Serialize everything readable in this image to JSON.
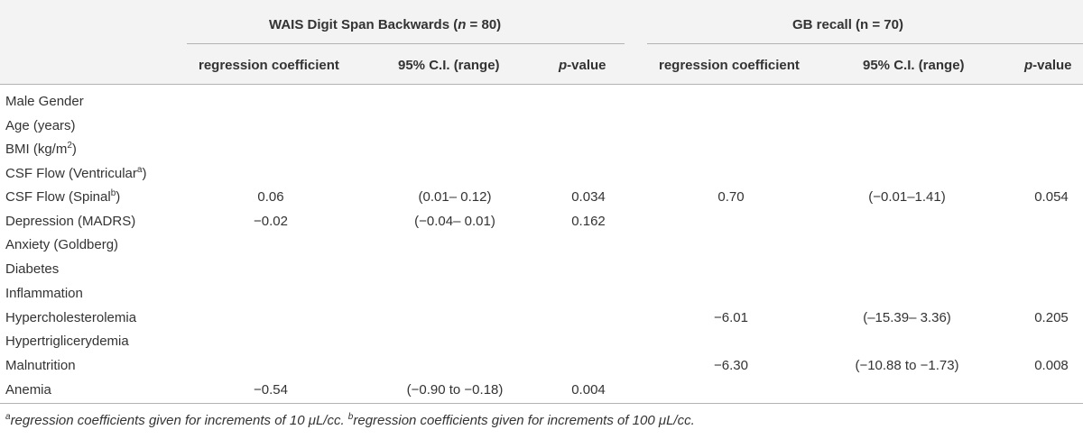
{
  "groups": {
    "left": {
      "title_pre": "WAIS Digit Span Backwards (",
      "n_sym": "n",
      "title_post": " = 80)"
    },
    "right": {
      "title": "GB recall (n = 70)"
    }
  },
  "columns": {
    "left_coef": "regression coefficient",
    "left_ci": "95% C.I. (range)",
    "left_p_italic": "p",
    "left_p_rest": "-value",
    "right_coef": "regression coefficient",
    "right_ci": "95% C.I. (range)",
    "right_p_italic": "p",
    "right_p_rest": "-value"
  },
  "rows": [
    {
      "label": "Male Gender",
      "wc": "",
      "wci": "",
      "wp": "",
      "gc": "",
      "gci": "",
      "gp": ""
    },
    {
      "label": "Age (years)",
      "wc": "",
      "wci": "",
      "wp": "",
      "gc": "",
      "gci": "",
      "gp": ""
    },
    {
      "label": "BMI (kg/m",
      "label_sup": "2",
      "label_tail": ")",
      "wc": "",
      "wci": "",
      "wp": "",
      "gc": "",
      "gci": "",
      "gp": ""
    },
    {
      "label": "CSF Flow (Ventricular",
      "label_sup": "a",
      "label_tail": ")",
      "wc": "",
      "wci": "",
      "wp": "",
      "gc": "",
      "gci": "",
      "gp": ""
    },
    {
      "label": "CSF Flow (Spinal",
      "label_sup": "b",
      "label_tail": ")",
      "wc": "0.06",
      "wci": "(0.01– 0.12)",
      "wp": "0.034",
      "gc": "0.70",
      "gci": "(−0.01–1.41)",
      "gp": "0.054"
    },
    {
      "label": "Depression (MADRS)",
      "wc": "−0.02",
      "wci": "(−0.04– 0.01)",
      "wp": "0.162",
      "gc": "",
      "gci": "",
      "gp": ""
    },
    {
      "label": "Anxiety (Goldberg)",
      "wc": "",
      "wci": "",
      "wp": "",
      "gc": "",
      "gci": "",
      "gp": ""
    },
    {
      "label": "Diabetes",
      "wc": "",
      "wci": "",
      "wp": "",
      "gc": "",
      "gci": "",
      "gp": ""
    },
    {
      "label": "Inflammation",
      "wc": "",
      "wci": "",
      "wp": "",
      "gc": "",
      "gci": "",
      "gp": ""
    },
    {
      "label": "Hypercholesterolemia",
      "wc": "",
      "wci": "",
      "wp": "",
      "gc": "−6.01",
      "gci": "(–15.39– 3.36)",
      "gp": "0.205"
    },
    {
      "label": "Hypertriglicerydemia",
      "wc": "",
      "wci": "",
      "wp": "",
      "gc": "",
      "gci": "",
      "gp": ""
    },
    {
      "label": "Malnutrition",
      "wc": "",
      "wci": "",
      "wp": "",
      "gc": "−6.30",
      "gci": "(−10.88 to −1.73)",
      "gp": "0.008"
    },
    {
      "label": "Anemia",
      "wc": "−0.54",
      "wci": "(−0.90 to −0.18)",
      "wp": "0.004",
      "gc": "",
      "gci": "",
      "gp": ""
    }
  ],
  "footnote": {
    "a_sup": "a",
    "a_text": "regression coefficients given for increments of 10 μL/cc. ",
    "b_sup": "b",
    "b_text": "regression coefficients given for increments of 100 μL/cc."
  }
}
